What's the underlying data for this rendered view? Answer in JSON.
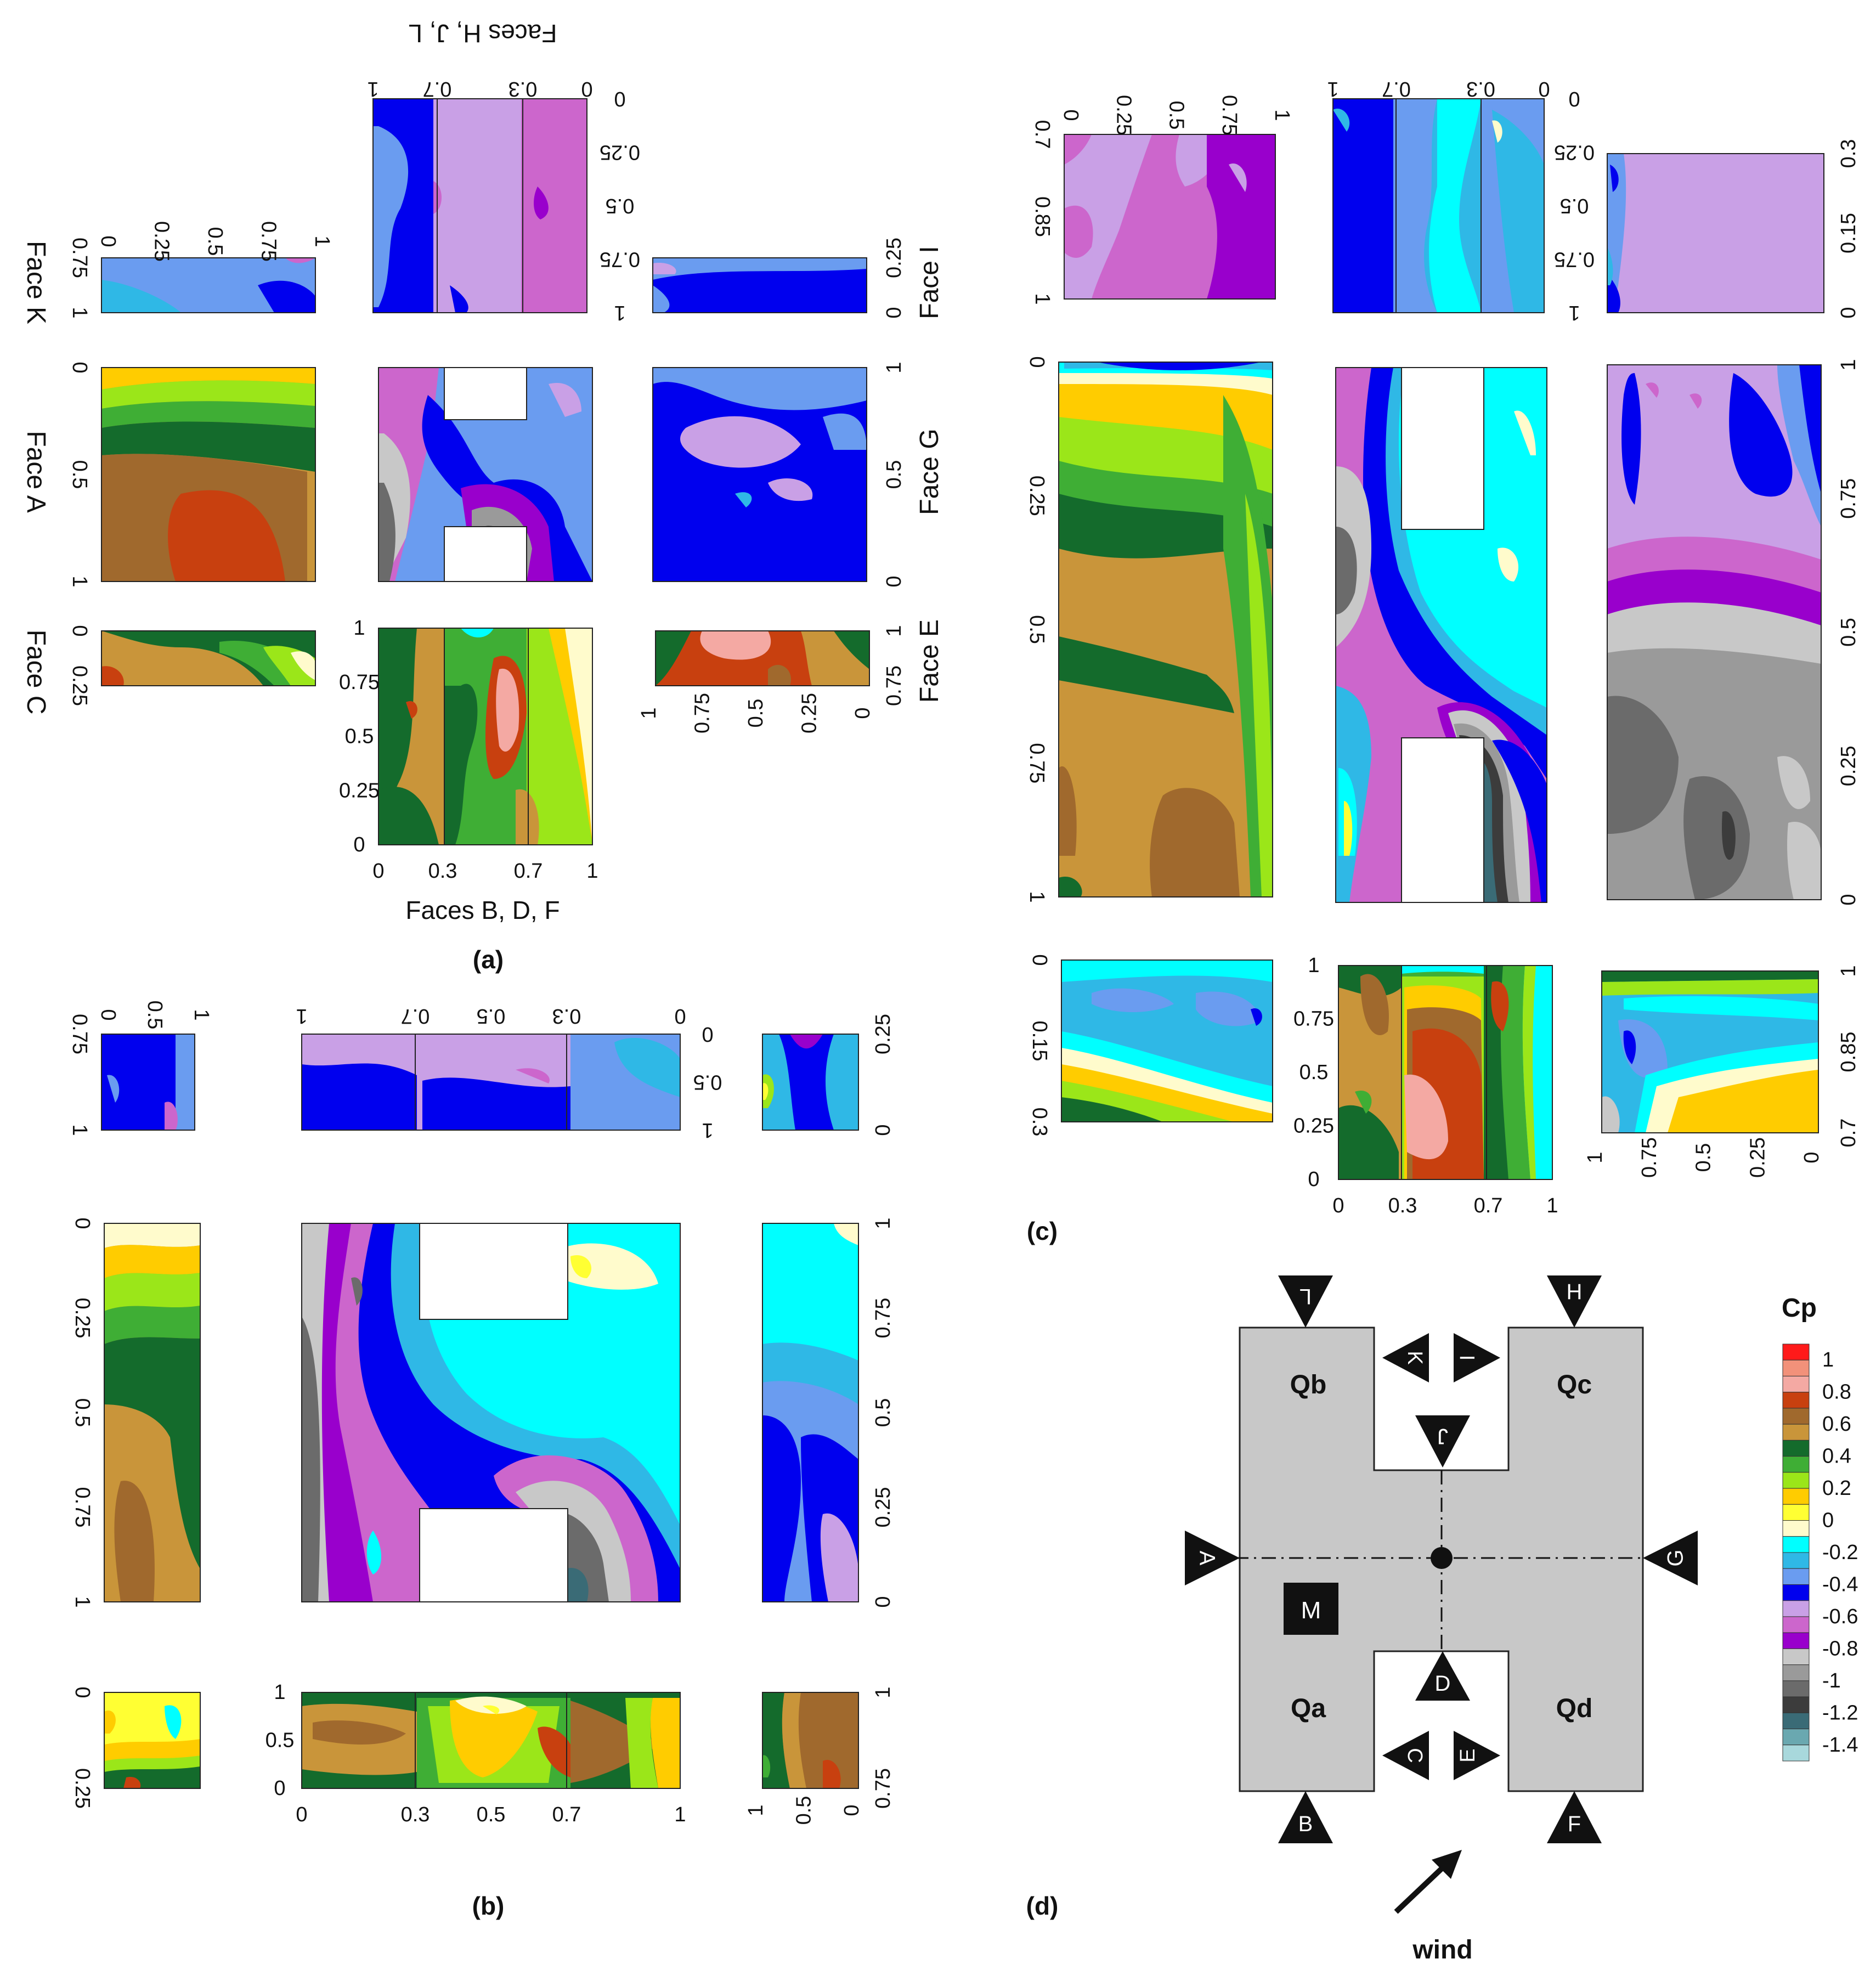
{
  "figure": {
    "panel_labels": {
      "a": "(a)",
      "b": "(b)",
      "c": "(c)",
      "d": "(d)"
    },
    "face_labels": {
      "top": "Faces H, J, L",
      "bottom": "Faces B, D, F",
      "face_K": "Face K",
      "face_I": "Face I",
      "face_A": "Face A",
      "face_G": "Face G",
      "face_C": "Face C",
      "face_E": "Face E"
    }
  },
  "legend": {
    "title": "Cp",
    "labels": [
      "1",
      "0.8",
      "0.6",
      "0.4",
      "0.2",
      "0",
      "-0.2",
      "-0.4",
      "-0.6",
      "-0.8",
      "-1",
      "-1.2",
      "-1.4"
    ],
    "colors": [
      "#ff1a1a",
      "#f2917a",
      "#f4a9a3",
      "#c8400f",
      "#a0692d",
      "#c9953a",
      "#146b2c",
      "#3fae35",
      "#9be619",
      "#ffcc00",
      "#ffff33",
      "#fffbcc",
      "#00ffff",
      "#2fb8e6",
      "#6a9cf0",
      "#0000ee",
      "#c9a0e6",
      "#cc66cc",
      "#9900cc",
      "#c8c8c8",
      "#9a9a9a",
      "#6b6b6b",
      "#3c3c3c",
      "#3a6b76",
      "#6aa8b0",
      "#a8d8dc"
    ]
  },
  "plan": {
    "wing_labels": [
      "Qb",
      "Qc",
      "Qa",
      "Qd"
    ],
    "center_label": "M",
    "face_markers": [
      "A",
      "B",
      "C",
      "D",
      "E",
      "F",
      "G",
      "H",
      "I",
      "J",
      "K",
      "L"
    ],
    "wind_label": "wind"
  },
  "chart_data": [
    {
      "type": "heatmap",
      "panel": "(a)",
      "x_ticks_top": [
        "0",
        "0.3",
        "0.7",
        "1"
      ],
      "y_ticks_top": [
        "0",
        "0.25",
        "0.5",
        "0.75",
        "1"
      ],
      "x_ticks_bottom": [
        "0",
        "0.3",
        "0.7",
        "1"
      ],
      "y_ticks_bottom": [
        "0",
        "0.25",
        "0.5",
        "0.75",
        "1"
      ],
      "ticks_K": [
        "0",
        "0.25",
        "0.5",
        "0.75",
        "1"
      ],
      "ticks_K_side": [
        "0.75",
        "1"
      ],
      "ticks_I": [
        "0.25",
        "0"
      ],
      "ticks_A": [
        "0",
        "0.5",
        "1"
      ],
      "ticks_G": [
        "1",
        "0.5",
        "0"
      ],
      "ticks_C": [
        "0",
        "0.25"
      ],
      "ticks_E": [
        "1",
        "0.75"
      ],
      "ticks_E_bottom": [
        "1",
        "0.75",
        "0.5",
        "0.25",
        "0"
      ]
    },
    {
      "type": "heatmap",
      "panel": "(b)",
      "x_ticks_top": [
        "0",
        "0.3",
        "0.5",
        "0.7",
        "1"
      ],
      "y_ticks_top": [
        "0",
        "0.5",
        "1"
      ],
      "x_ticks_bottom": [
        "0",
        "0.3",
        "0.5",
        "0.7",
        "1"
      ],
      "y_ticks_bottom": [
        "0",
        "0.5",
        "1"
      ],
      "ticks_K": [
        "0",
        "0.5",
        "1"
      ],
      "ticks_K_side": [
        "0.75",
        "1"
      ],
      "ticks_I": [
        "0.25",
        "0"
      ],
      "ticks_A": [
        "0",
        "0.25",
        "0.5",
        "0.75",
        "1"
      ],
      "ticks_G": [
        "1",
        "0.75",
        "0.5",
        "0.25",
        "0"
      ],
      "ticks_C": [
        "0",
        "0.25"
      ],
      "ticks_E": [
        "1",
        "0.75"
      ],
      "ticks_E_bottom": [
        "1",
        "0.5",
        "0"
      ]
    },
    {
      "type": "heatmap",
      "panel": "(c)",
      "ticks_top_left": [
        "0",
        "0.25",
        "0.5",
        "0.75",
        "1"
      ],
      "ticks_top_left_side": [
        "0.7",
        "0.85",
        "1"
      ],
      "x_ticks_top": [
        "0",
        "0.3",
        "0.7",
        "1"
      ],
      "y_ticks_top": [
        "0",
        "0.25",
        "0.5",
        "0.75",
        "1"
      ],
      "ticks_top_right": [
        "0.3",
        "0.15",
        "0"
      ],
      "ticks_A": [
        "0",
        "0.25",
        "0.5",
        "0.75",
        "1"
      ],
      "ticks_G": [
        "1",
        "0.75",
        "0.5",
        "0.25",
        "0"
      ],
      "ticks_C": [
        "0",
        "0.15",
        "0.3"
      ],
      "x_ticks_bottom": [
        "0",
        "0.3",
        "0.7",
        "1"
      ],
      "y_ticks_bottom": [
        "0",
        "0.25",
        "0.5",
        "0.75",
        "1"
      ],
      "ticks_E": [
        "1",
        "0.85",
        "0.7"
      ],
      "ticks_E_bottom": [
        "1",
        "0.75",
        "0.5",
        "0.25",
        "0"
      ]
    }
  ]
}
